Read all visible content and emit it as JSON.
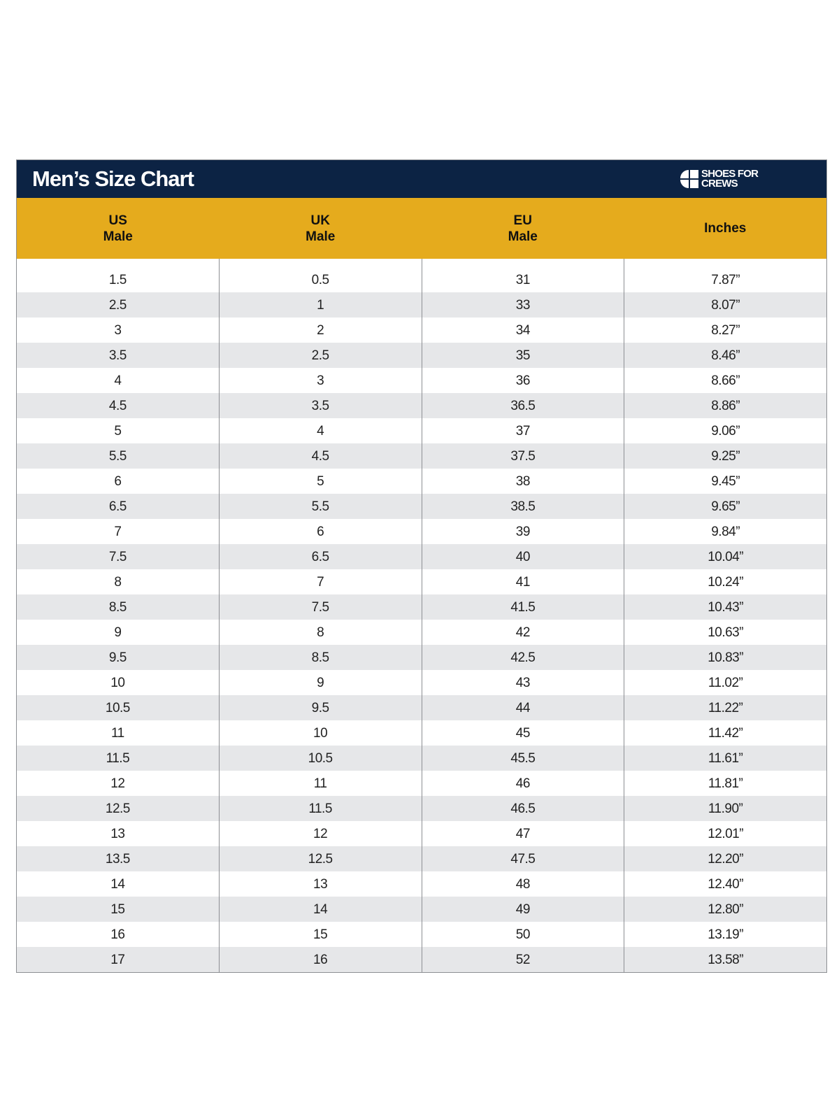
{
  "chart_data": {
    "type": "table",
    "title": "Men’s Size Chart",
    "brand": {
      "name_line1": "SHOES FOR",
      "name_line2": "CREWS"
    },
    "columns": [
      {
        "line1": "US",
        "line2": "Male"
      },
      {
        "line1": "UK",
        "line2": "Male"
      },
      {
        "line1": "EU",
        "line2": "Male"
      },
      {
        "line1": "Inches",
        "line2": ""
      }
    ],
    "rows": [
      [
        "1.5",
        "0.5",
        "31",
        "7.87”"
      ],
      [
        "2.5",
        "1",
        "33",
        "8.07”"
      ],
      [
        "3",
        "2",
        "34",
        "8.27”"
      ],
      [
        "3.5",
        "2.5",
        "35",
        "8.46”"
      ],
      [
        "4",
        "3",
        "36",
        "8.66”"
      ],
      [
        "4.5",
        "3.5",
        "36.5",
        "8.86”"
      ],
      [
        "5",
        "4",
        "37",
        "9.06”"
      ],
      [
        "5.5",
        "4.5",
        "37.5",
        "9.25”"
      ],
      [
        "6",
        "5",
        "38",
        "9.45”"
      ],
      [
        "6.5",
        "5.5",
        "38.5",
        "9.65”"
      ],
      [
        "7",
        "6",
        "39",
        "9.84”"
      ],
      [
        "7.5",
        "6.5",
        "40",
        "10.04”"
      ],
      [
        "8",
        "7",
        "41",
        "10.24”"
      ],
      [
        "8.5",
        "7.5",
        "41.5",
        "10.43”"
      ],
      [
        "9",
        "8",
        "42",
        "10.63”"
      ],
      [
        "9.5",
        "8.5",
        "42.5",
        "10.83”"
      ],
      [
        "10",
        "9",
        "43",
        "11.02”"
      ],
      [
        "10.5",
        "9.5",
        "44",
        "11.22”"
      ],
      [
        "11",
        "10",
        "45",
        "11.42”"
      ],
      [
        "11.5",
        "10.5",
        "45.5",
        "11.61”"
      ],
      [
        "12",
        "11",
        "46",
        "11.81”"
      ],
      [
        "12.5",
        "11.5",
        "46.5",
        "11.90”"
      ],
      [
        "13",
        "12",
        "47",
        "12.01”"
      ],
      [
        "13.5",
        "12.5",
        "47.5",
        "12.20”"
      ],
      [
        "14",
        "13",
        "48",
        "12.40”"
      ],
      [
        "15",
        "14",
        "49",
        "12.80”"
      ],
      [
        "16",
        "15",
        "50",
        "13.19”"
      ],
      [
        "17",
        "16",
        "52",
        "13.58”"
      ]
    ],
    "colors": {
      "title_bar": "#0c2344",
      "header_row": "#e5ab1d",
      "alt_row": "#e6e7e9"
    }
  }
}
